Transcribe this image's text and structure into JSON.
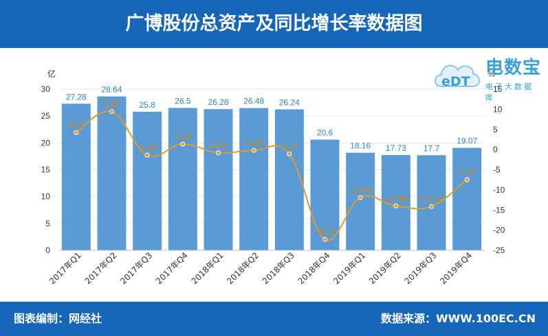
{
  "header": {
    "title": "广博股份总资产及同比增长率数据图"
  },
  "footer": {
    "left": "图表编制：网经社",
    "right": "数据来源：WWW.100EC.CN"
  },
  "logo": {
    "main": "电数宝",
    "sub": "电子大数据库",
    "mark": "eDT"
  },
  "colors": {
    "bar": "#5b9bd5",
    "line": "#e09b26",
    "header": "#1565b8",
    "bar_label": "#2e86c1",
    "line_label": "#d4850f"
  },
  "chart_data": {
    "type": "bar",
    "categories": [
      "2017年Q1",
      "2017年Q2",
      "2017年Q3",
      "2017年Q4",
      "2018年Q1",
      "2018年Q2",
      "2018年Q3",
      "2018年Q4",
      "2019年Q1",
      "2019年Q2",
      "2019年Q3",
      "2019年Q4"
    ],
    "series": [
      {
        "type": "bar",
        "axis": "left",
        "values": [
          27.28,
          28.64,
          25.8,
          26.5,
          26.28,
          26.48,
          26.24,
          20.6,
          18.16,
          17.73,
          17.7,
          19.07
        ],
        "labels": [
          "27.28",
          "28.64",
          "25.8",
          "26.5",
          "26.28",
          "26.48",
          "26.24",
          "20.6",
          "18.16",
          "17.73",
          "17.7",
          "19.07"
        ]
      },
      {
        "type": "line",
        "axis": "right",
        "values": [
          4.23,
          9.44,
          -1.39,
          1.36,
          -0.81,
          -0.18,
          -1.07,
          -22.3,
          -11.89,
          -13.98,
          -14.12,
          -7.47
        ],
        "labels": [
          "4.23",
          "9.44",
          "-1.39",
          "1.36",
          "-0.81",
          "-0.18",
          "-1.07",
          "-22.3",
          "-11.89",
          "-13.98",
          "-14.12",
          "-7.47"
        ]
      }
    ],
    "y_left": {
      "label": "亿",
      "range": [
        0,
        30
      ],
      "ticks": [
        "0",
        "5",
        "10",
        "15",
        "20",
        "25",
        "30"
      ]
    },
    "y_right": {
      "label": "%",
      "range": [
        -25,
        15
      ],
      "ticks": [
        "-25",
        "-20",
        "-15",
        "-10",
        "-5",
        "0",
        "5",
        "10",
        "15"
      ]
    },
    "grid": true
  }
}
